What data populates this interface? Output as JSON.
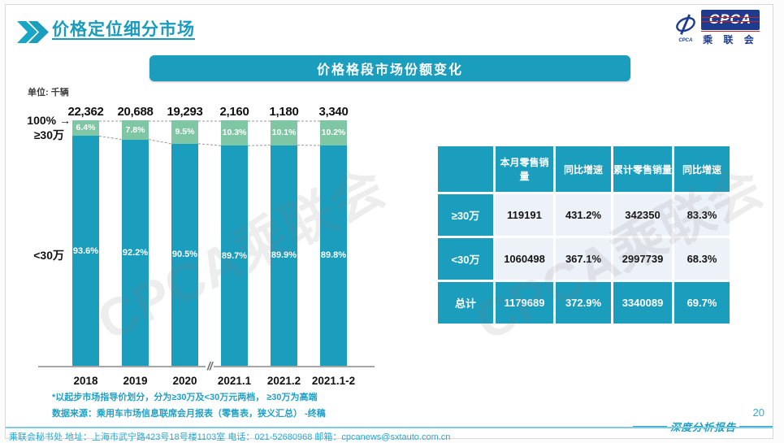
{
  "header": {
    "title": "价格定位细分市场",
    "logo": {
      "mark_text": "CPCA",
      "box_text": "CPCA",
      "org_text": "乘 联 会"
    }
  },
  "banner": {
    "title": "价格格段市场份额变化"
  },
  "chart": {
    "unit_label": "单位: 千辆",
    "axis_top_label": "100%",
    "arrow": "→",
    "upper_band_label": "≥30万",
    "lower_band_label": "<30万",
    "break_mark": "//"
  },
  "chart_data": {
    "type": "bar",
    "subtype": "stacked-100-percent-column",
    "title": "价格格段市场份额变化",
    "unit": "千辆",
    "categories": [
      "2018",
      "2019",
      "2020",
      "2021.1",
      "2021.2",
      "2021.1-2"
    ],
    "totals": [
      "22,362",
      "20,688",
      "19,293",
      "2,160",
      "1,180",
      "3,340"
    ],
    "series": [
      {
        "name": "≥30万",
        "color": "#7fc7a4",
        "values": [
          6.4,
          7.8,
          9.5,
          10.3,
          10.1,
          10.2
        ]
      },
      {
        "name": "<30万",
        "color": "#1b9dbe",
        "values": [
          93.6,
          92.2,
          90.5,
          89.7,
          89.9,
          89.8
        ]
      }
    ],
    "value_suffix": "%",
    "ylim": [
      0,
      100
    ],
    "axis_break_between": [
      "2020",
      "2021.1"
    ],
    "grid": false,
    "legend_position": "left-inline"
  },
  "table": {
    "headers": [
      "",
      "本月零售销量",
      "同比增速",
      "累计零售销量",
      "同比增速"
    ],
    "rows": [
      {
        "label": "≥30万",
        "values": [
          "119191",
          "431.2%",
          "342350",
          "83.3%"
        ],
        "is_total": false
      },
      {
        "label": "<30万",
        "values": [
          "1060498",
          "367.1%",
          "2997739",
          "68.3%"
        ],
        "is_total": false
      },
      {
        "label": "总计",
        "values": [
          "1179689",
          "372.9%",
          "3340089",
          "69.7%"
        ],
        "is_total": true
      }
    ]
  },
  "footnotes": [
    "*以起步市场指导价划分，分为≥30万及<30万元两档， ≥30万为高端",
    "数据来源：乘用车市场信息联席会月报表（零售表，狭义汇总） -终稿"
  ],
  "footer": {
    "page_number": "20",
    "report_label": "深度分析报告",
    "contact": "乘联会秘书处  地址：上海市武宁路423号18号楼1103室 电话：021-52680968  邮箱：cpcanews@sxtauto.com.cn"
  },
  "watermark": "CPCA乘联会",
  "colors": {
    "teal": "#1b9dbe",
    "green": "#7fc7a4",
    "light_cell": "#edf1f8",
    "title": "#189cbe",
    "footnote": "#21a0c4",
    "footer_text": "#2aa7cf",
    "axis": "#a6a6a6",
    "logo_blue": "#1e3c8f",
    "logo_red": "#cc2222"
  }
}
